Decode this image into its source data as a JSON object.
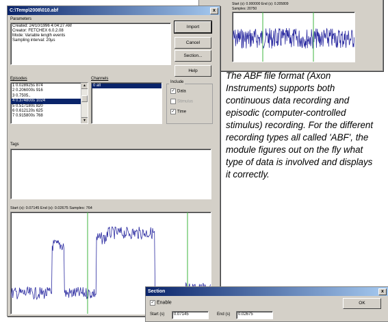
{
  "back_window": {
    "info_line1": "Start (s): 0.000000   End (s): 0.205809",
    "info_line2": "Samples: 20750"
  },
  "main_window": {
    "title": "C:\\Temp\\2008\\010.abf",
    "close_glyph": "x",
    "parameters_label": "Parameters",
    "parameters_lines": [
      "Created: 24/10/1996 4:04:27 AM",
      "Creator: FETCHEX 6.0.2.08",
      "Mode: Variable length events",
      "Sampling interval: 20μs"
    ],
    "buttons": {
      "import": "Import",
      "cancel": "Cancel",
      "section": "Section...",
      "help": "Help"
    },
    "episodes_label": "Episodes",
    "episodes": [
      {
        "n": "1",
        "time": "0.028925s",
        "samples": "874"
      },
      {
        "n": "2",
        "time": "0.206000s",
        "samples": "916"
      },
      {
        "n": "3",
        "time": "0.7505..",
        "samples": ""
      },
      {
        "n": "4",
        "time": "0.374800s",
        "samples": "1024"
      },
      {
        "n": "5",
        "time": "0.517180s",
        "samples": "820"
      },
      {
        "n": "6",
        "time": "0.612120s",
        "samples": "625"
      },
      {
        "n": "7",
        "time": "0.915800s",
        "samples": "768"
      }
    ],
    "channels_label": "Channels",
    "channels": [
      "0",
      "all"
    ],
    "include_label": "Include",
    "include": [
      {
        "label": "Data",
        "checked": true,
        "enabled": true
      },
      {
        "label": "Stimulus",
        "checked": false,
        "enabled": false
      },
      {
        "label": "Time",
        "checked": true,
        "enabled": true
      }
    ],
    "tags_label": "Tags",
    "preview_info": "Start (s): 0.07145   End (s): 0.02675   Samples: 764"
  },
  "description": "The ABF file format (Axon Instruments) supports both continuous data recording and episodic (computer-controlled stimulus) recording. For the different recording types all called 'ABF', the module figures out on the fly what type of data is involved and displays it correctly.",
  "section_window": {
    "title": "Section",
    "close_glyph": "x",
    "enable_label": "Enable",
    "enable_checked": true,
    "ok_label": "OK",
    "start_label": "Start (s)",
    "start_value": "0.07145",
    "end_label": "End (s)",
    "end_value": "0.02675"
  },
  "colors": {
    "trace": "#2a2aa0",
    "titlebar": "#0a246a",
    "marker": "#3cb43c"
  }
}
